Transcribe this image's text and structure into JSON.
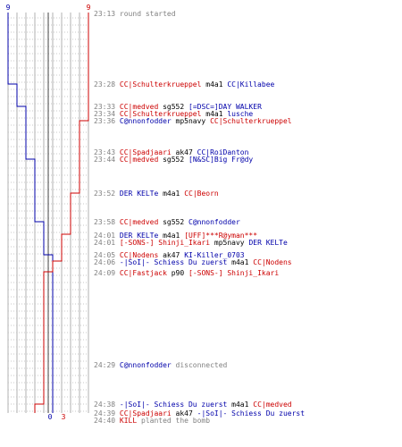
{
  "colors": {
    "ct": "#cc0000",
    "t": "#0000aa",
    "neutral": "#000000",
    "muted": "#808080",
    "grid": "#b0b0b0"
  },
  "scores": {
    "blue_start": "9",
    "red_start": "9",
    "blue_end": "0",
    "red_end": "3"
  },
  "events": [
    {
      "time": "23:13",
      "parts": [
        {
          "text": "round started",
          "c": "muted"
        }
      ]
    },
    {
      "time": "23:28",
      "parts": [
        {
          "text": "CC|Schulterkrueppel",
          "c": "ct"
        },
        {
          "text": " m4a1 ",
          "c": "neutral"
        },
        {
          "text": "CC|Killabee",
          "c": "t"
        }
      ]
    },
    {
      "time": "23:33",
      "parts": [
        {
          "text": "CC|medved",
          "c": "ct"
        },
        {
          "text": " sg552 ",
          "c": "neutral"
        },
        {
          "text": "[=DSC=]DAY WALKER",
          "c": "t"
        }
      ]
    },
    {
      "time": "23:34",
      "parts": [
        {
          "text": "CC|Schulterkrueppel",
          "c": "ct"
        },
        {
          "text": " m4a1 ",
          "c": "neutral"
        },
        {
          "text": "lusche",
          "c": "t"
        }
      ]
    },
    {
      "time": "23:36",
      "parts": [
        {
          "text": "C@nnonfodder",
          "c": "t"
        },
        {
          "text": " mp5navy ",
          "c": "neutral"
        },
        {
          "text": "CC|Schulterkrueppel",
          "c": "ct"
        }
      ]
    },
    {
      "time": "23:43",
      "parts": [
        {
          "text": "CC|Spadjaari",
          "c": "ct"
        },
        {
          "text": " ak47 ",
          "c": "neutral"
        },
        {
          "text": "CC|RoiDanton",
          "c": "t"
        }
      ]
    },
    {
      "time": "23:44",
      "parts": [
        {
          "text": "CC|medved",
          "c": "ct"
        },
        {
          "text": " sg552 ",
          "c": "neutral"
        },
        {
          "text": "[N&SC]Big Fr@dy",
          "c": "t"
        }
      ]
    },
    {
      "time": "23:52",
      "parts": [
        {
          "text": "DER KELTe",
          "c": "t"
        },
        {
          "text": " m4a1 ",
          "c": "neutral"
        },
        {
          "text": "CC|Beorn",
          "c": "ct"
        }
      ]
    },
    {
      "time": "23:58",
      "parts": [
        {
          "text": "CC|medved",
          "c": "ct"
        },
        {
          "text": " sg552 ",
          "c": "neutral"
        },
        {
          "text": "C@nnonfodder",
          "c": "t"
        }
      ]
    },
    {
      "time": "24:01",
      "parts": [
        {
          "text": "DER KELTe",
          "c": "t"
        },
        {
          "text": " m4a1 ",
          "c": "neutral"
        },
        {
          "text": "[UFF]***R@yman***",
          "c": "ct"
        }
      ]
    },
    {
      "time": "24:01",
      "parts": [
        {
          "text": "[-SONS-] Shinji_Ikari",
          "c": "ct"
        },
        {
          "text": " mp5navy ",
          "c": "neutral"
        },
        {
          "text": "DER KELTe",
          "c": "t"
        }
      ]
    },
    {
      "time": "24:05",
      "parts": [
        {
          "text": "CC|Nodens",
          "c": "ct"
        },
        {
          "text": " ak47 ",
          "c": "neutral"
        },
        {
          "text": "KI-Killer_0703",
          "c": "t"
        }
      ]
    },
    {
      "time": "24:06",
      "parts": [
        {
          "text": "-|SoI|- Schiess Du zuerst",
          "c": "t"
        },
        {
          "text": " m4a1 ",
          "c": "neutral"
        },
        {
          "text": "CC|Nodens",
          "c": "ct"
        }
      ]
    },
    {
      "time": "24:09",
      "parts": [
        {
          "text": "CC|Fastjack",
          "c": "ct"
        },
        {
          "text": " p90 ",
          "c": "neutral"
        },
        {
          "text": "[-SONS-] Shinji_Ikari",
          "c": "ct"
        }
      ]
    },
    {
      "time": "24:29",
      "parts": [
        {
          "text": "C@nnonfodder",
          "c": "t"
        },
        {
          "text": " disconnected",
          "c": "muted"
        }
      ]
    },
    {
      "time": "24:38",
      "parts": [
        {
          "text": "-|SoI|- Schiess Du zuerst",
          "c": "t"
        },
        {
          "text": " m4a1 ",
          "c": "neutral"
        },
        {
          "text": "CC|medved",
          "c": "ct"
        }
      ]
    },
    {
      "time": "24:39",
      "parts": [
        {
          "text": "CC|Spadjaari",
          "c": "ct"
        },
        {
          "text": " ak47 ",
          "c": "neutral"
        },
        {
          "text": "-|SoI|- Schiess Du zuerst",
          "c": "t"
        }
      ]
    },
    {
      "time": "24:40",
      "parts": [
        {
          "text": "KILL",
          "c": "ct"
        },
        {
          "text": " planted the bomb",
          "c": "muted"
        }
      ]
    }
  ]
}
